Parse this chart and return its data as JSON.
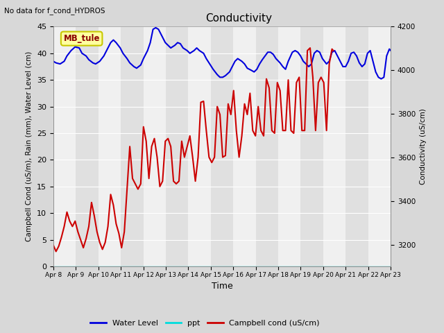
{
  "title": "Conductivity",
  "top_left_text": "No data for f_cond_HYDROS",
  "ylabel_left": "Campbell Cond (uS/m), Rain (mm), Water Level (cm)",
  "ylabel_right": "Conductivity (uS/cm)",
  "xlabel": "Time",
  "ylim_left": [
    0,
    45
  ],
  "ylim_right": [
    3100,
    4200
  ],
  "x_tick_labels": [
    "Apr 8",
    "Apr 9",
    "Apr 10",
    "Apr 11",
    "Apr 12",
    "Apr 13",
    "Apr 14",
    "Apr 15",
    "Apr 16",
    "Apr 17",
    "Apr 18",
    "Apr 19",
    "Apr 20",
    "Apr 21",
    "Apr 22",
    "Apr 23"
  ],
  "fig_bg_color": "#d8d8d8",
  "plot_bg_color": "#e8e8e8",
  "band_color_light": "#f0f0f0",
  "band_color_dark": "#e0e0e0",
  "box_label": "MB_tule",
  "box_face_color": "#ffffa0",
  "box_edge_color": "#c8c800",
  "water_level_color": "#0000dd",
  "ppt_color": "#00dddd",
  "campbell_color": "#cc0000",
  "water_level_data": [
    [
      0.0,
      38.5
    ],
    [
      0.2,
      38.2
    ],
    [
      0.5,
      38.0
    ],
    [
      0.8,
      38.5
    ],
    [
      1.0,
      39.5
    ],
    [
      1.3,
      40.5
    ],
    [
      1.6,
      41.2
    ],
    [
      1.9,
      41.0
    ],
    [
      2.1,
      40.0
    ],
    [
      2.4,
      39.5
    ],
    [
      2.6,
      38.8
    ],
    [
      2.9,
      38.2
    ],
    [
      3.1,
      38.0
    ],
    [
      3.4,
      38.5
    ],
    [
      3.7,
      39.5
    ],
    [
      4.0,
      41.0
    ],
    [
      4.2,
      42.0
    ],
    [
      4.4,
      42.5
    ],
    [
      4.6,
      42.0
    ],
    [
      4.9,
      41.0
    ],
    [
      5.1,
      40.0
    ],
    [
      5.4,
      39.0
    ],
    [
      5.6,
      38.2
    ],
    [
      5.9,
      37.5
    ],
    [
      6.1,
      37.2
    ],
    [
      6.4,
      37.8
    ],
    [
      6.6,
      39.0
    ],
    [
      6.9,
      40.5
    ],
    [
      7.1,
      42.0
    ],
    [
      7.3,
      44.5
    ],
    [
      7.5,
      44.8
    ],
    [
      7.7,
      44.5
    ],
    [
      7.9,
      43.5
    ],
    [
      8.2,
      42.0
    ],
    [
      8.4,
      41.5
    ],
    [
      8.6,
      41.0
    ],
    [
      8.9,
      41.5
    ],
    [
      9.1,
      42.0
    ],
    [
      9.3,
      41.8
    ],
    [
      9.5,
      41.0
    ],
    [
      9.8,
      40.5
    ],
    [
      10.0,
      40.0
    ],
    [
      10.3,
      40.5
    ],
    [
      10.5,
      41.0
    ],
    [
      10.7,
      40.5
    ],
    [
      11.0,
      40.0
    ],
    [
      11.2,
      39.0
    ],
    [
      11.5,
      37.8
    ],
    [
      11.7,
      37.0
    ],
    [
      12.0,
      36.0
    ],
    [
      12.2,
      35.5
    ],
    [
      12.4,
      35.5
    ],
    [
      12.6,
      35.8
    ],
    [
      12.9,
      36.5
    ],
    [
      13.1,
      37.5
    ],
    [
      13.3,
      38.5
    ],
    [
      13.5,
      39.0
    ],
    [
      13.8,
      38.5
    ],
    [
      14.0,
      38.0
    ],
    [
      14.2,
      37.2
    ],
    [
      14.5,
      36.8
    ],
    [
      14.7,
      36.5
    ],
    [
      14.9,
      37.0
    ],
    [
      15.1,
      38.0
    ],
    [
      15.3,
      38.8
    ],
    [
      15.5,
      39.5
    ],
    [
      15.7,
      40.2
    ],
    [
      15.9,
      40.2
    ],
    [
      16.1,
      39.8
    ],
    [
      16.3,
      39.0
    ],
    [
      16.6,
      38.2
    ],
    [
      16.8,
      37.5
    ],
    [
      17.0,
      37.0
    ],
    [
      17.2,
      38.5
    ],
    [
      17.5,
      40.2
    ],
    [
      17.7,
      40.5
    ],
    [
      17.9,
      40.2
    ],
    [
      18.1,
      39.5
    ],
    [
      18.3,
      38.5
    ],
    [
      18.5,
      38.0
    ],
    [
      18.7,
      37.5
    ],
    [
      18.9,
      38.0
    ],
    [
      19.1,
      40.0
    ],
    [
      19.3,
      40.5
    ],
    [
      19.5,
      40.2
    ],
    [
      19.7,
      39.0
    ],
    [
      20.0,
      38.0
    ],
    [
      20.2,
      38.5
    ],
    [
      20.4,
      40.2
    ],
    [
      20.6,
      40.5
    ],
    [
      20.8,
      39.5
    ],
    [
      21.0,
      38.5
    ],
    [
      21.2,
      37.5
    ],
    [
      21.4,
      37.5
    ],
    [
      21.6,
      38.5
    ],
    [
      21.8,
      40.0
    ],
    [
      22.0,
      40.2
    ],
    [
      22.2,
      39.5
    ],
    [
      22.4,
      38.2
    ],
    [
      22.6,
      37.5
    ],
    [
      22.8,
      38.0
    ],
    [
      23.0,
      40.0
    ],
    [
      23.2,
      40.5
    ],
    [
      23.4,
      38.5
    ],
    [
      23.6,
      36.5
    ],
    [
      23.8,
      35.5
    ],
    [
      24.0,
      35.2
    ],
    [
      24.2,
      35.5
    ],
    [
      24.4,
      39.5
    ],
    [
      24.6,
      40.8
    ],
    [
      24.7,
      40.5
    ]
  ],
  "campbell_data": [
    [
      0.0,
      4.0
    ],
    [
      0.2,
      2.8
    ],
    [
      0.4,
      3.8
    ],
    [
      0.6,
      5.5
    ],
    [
      0.8,
      7.5
    ],
    [
      1.0,
      10.2
    ],
    [
      1.2,
      8.5
    ],
    [
      1.4,
      7.5
    ],
    [
      1.6,
      8.5
    ],
    [
      1.8,
      6.5
    ],
    [
      2.0,
      5.0
    ],
    [
      2.2,
      3.5
    ],
    [
      2.4,
      5.2
    ],
    [
      2.6,
      7.5
    ],
    [
      2.8,
      12.0
    ],
    [
      3.0,
      9.5
    ],
    [
      3.2,
      6.5
    ],
    [
      3.4,
      4.5
    ],
    [
      3.6,
      3.2
    ],
    [
      3.8,
      4.5
    ],
    [
      4.0,
      7.5
    ],
    [
      4.2,
      13.5
    ],
    [
      4.4,
      11.5
    ],
    [
      4.6,
      8.0
    ],
    [
      4.8,
      6.2
    ],
    [
      5.0,
      3.5
    ],
    [
      5.2,
      6.5
    ],
    [
      5.4,
      14.5
    ],
    [
      5.6,
      22.5
    ],
    [
      5.8,
      16.5
    ],
    [
      6.0,
      15.5
    ],
    [
      6.2,
      14.5
    ],
    [
      6.4,
      15.5
    ],
    [
      6.6,
      26.2
    ],
    [
      6.8,
      23.5
    ],
    [
      7.0,
      16.5
    ],
    [
      7.2,
      22.5
    ],
    [
      7.4,
      24.0
    ],
    [
      7.6,
      20.5
    ],
    [
      7.8,
      15.0
    ],
    [
      8.0,
      16.0
    ],
    [
      8.2,
      23.5
    ],
    [
      8.4,
      24.0
    ],
    [
      8.6,
      22.5
    ],
    [
      8.8,
      16.0
    ],
    [
      9.0,
      15.5
    ],
    [
      9.2,
      16.0
    ],
    [
      9.4,
      23.5
    ],
    [
      9.6,
      20.5
    ],
    [
      9.8,
      22.5
    ],
    [
      10.0,
      24.5
    ],
    [
      10.2,
      20.5
    ],
    [
      10.4,
      16.0
    ],
    [
      10.6,
      20.5
    ],
    [
      10.8,
      30.8
    ],
    [
      11.0,
      31.0
    ],
    [
      11.2,
      25.5
    ],
    [
      11.4,
      20.5
    ],
    [
      11.6,
      19.5
    ],
    [
      11.8,
      20.5
    ],
    [
      12.0,
      30.0
    ],
    [
      12.2,
      28.5
    ],
    [
      12.4,
      20.5
    ],
    [
      12.6,
      20.8
    ],
    [
      12.8,
      30.5
    ],
    [
      13.0,
      28.5
    ],
    [
      13.2,
      33.0
    ],
    [
      13.4,
      25.5
    ],
    [
      13.6,
      20.5
    ],
    [
      13.8,
      24.5
    ],
    [
      14.0,
      30.5
    ],
    [
      14.2,
      28.5
    ],
    [
      14.4,
      32.5
    ],
    [
      14.6,
      25.5
    ],
    [
      14.8,
      24.5
    ],
    [
      15.0,
      30.0
    ],
    [
      15.2,
      25.5
    ],
    [
      15.4,
      24.5
    ],
    [
      15.6,
      35.2
    ],
    [
      15.8,
      33.5
    ],
    [
      16.0,
      25.5
    ],
    [
      16.2,
      25.0
    ],
    [
      16.4,
      34.5
    ],
    [
      16.6,
      33.0
    ],
    [
      16.8,
      25.5
    ],
    [
      17.0,
      25.5
    ],
    [
      17.2,
      35.0
    ],
    [
      17.4,
      25.5
    ],
    [
      17.6,
      25.0
    ],
    [
      17.8,
      34.5
    ],
    [
      18.0,
      35.5
    ],
    [
      18.2,
      25.5
    ],
    [
      18.4,
      25.5
    ],
    [
      18.6,
      40.5
    ],
    [
      18.8,
      41.0
    ],
    [
      19.0,
      35.5
    ],
    [
      19.2,
      25.5
    ],
    [
      19.4,
      34.5
    ],
    [
      19.6,
      35.5
    ],
    [
      19.8,
      34.5
    ],
    [
      20.0,
      25.5
    ],
    [
      20.2,
      38.0
    ],
    [
      20.4,
      40.8
    ],
    [
      20.5,
      40.5
    ]
  ]
}
